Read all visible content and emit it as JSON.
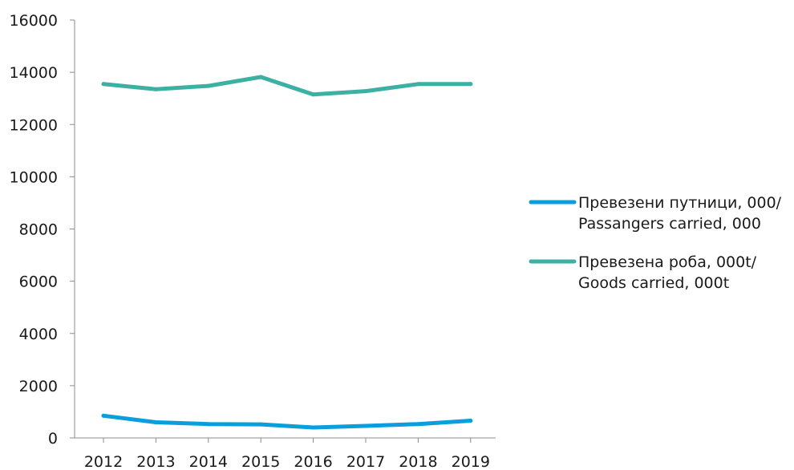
{
  "chart_data": {
    "type": "line",
    "title": "",
    "xlabel": "",
    "ylabel": "",
    "x": [
      "2012",
      "2013",
      "2014",
      "2015",
      "2016",
      "2017",
      "2018",
      "2019"
    ],
    "ylim": [
      0,
      16000
    ],
    "yticks": [
      0,
      2000,
      4000,
      6000,
      8000,
      10000,
      12000,
      14000,
      16000
    ],
    "grid": false,
    "legend_position": "right",
    "series": [
      {
        "name_lines": [
          "Превезени путници, 000/",
          "Passangers carried, 000"
        ],
        "color": "#0a9fdc",
        "values": [
          850,
          600,
          530,
          520,
          400,
          460,
          530,
          660
        ]
      },
      {
        "name_lines": [
          "Превезена роба, 000t/",
          "Goods carried, 000t"
        ],
        "color": "#3db0a4",
        "values": [
          13550,
          13350,
          13480,
          13820,
          13150,
          13280,
          13550,
          13550
        ]
      }
    ]
  }
}
